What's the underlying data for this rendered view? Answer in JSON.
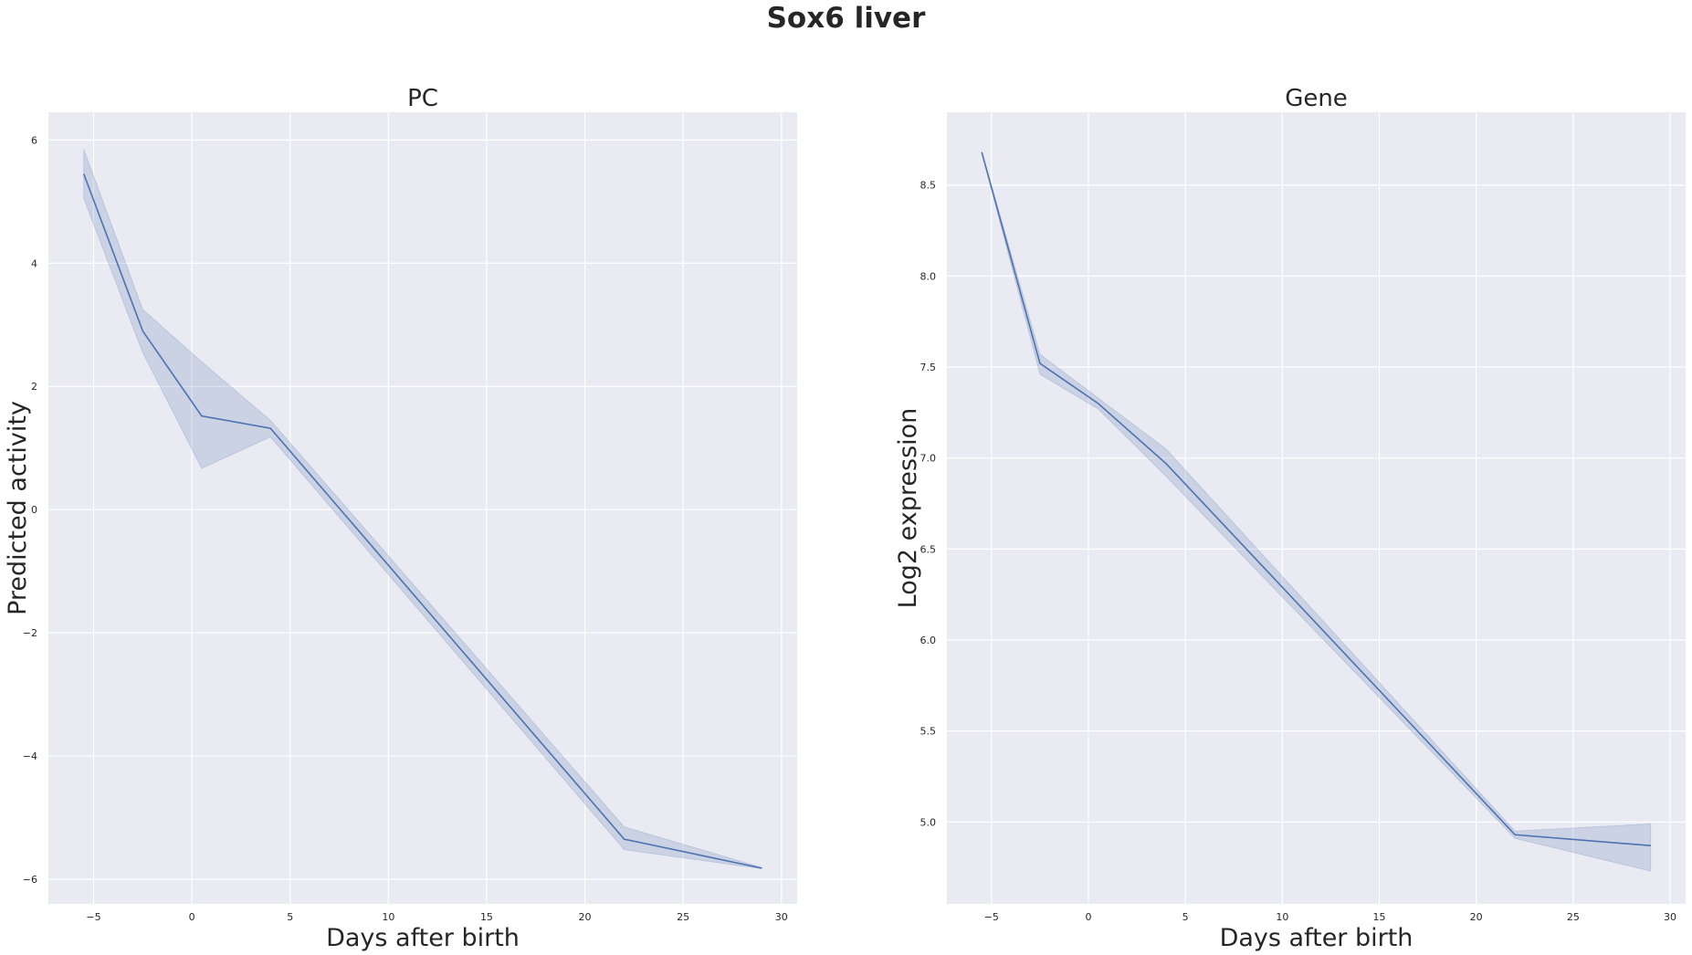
{
  "figure": {
    "title": "Sox6 liver"
  },
  "chart_data": [
    {
      "type": "line",
      "title": "PC",
      "xlabel": "Days after birth",
      "ylabel": "Predicted activity",
      "xlim": [
        -7.3,
        30.8
      ],
      "ylim": [
        -6.4,
        6.45
      ],
      "xticks": [
        -5,
        0,
        5,
        10,
        15,
        20,
        25,
        30
      ],
      "yticks": [
        -6,
        -4,
        -2,
        0,
        2,
        4,
        6
      ],
      "xtick_labels": [
        "−5",
        "0",
        "5",
        "10",
        "15",
        "20",
        "25",
        "30"
      ],
      "ytick_labels": [
        "−6",
        "−4",
        "−2",
        "0",
        "2",
        "4",
        "6"
      ],
      "grid": true,
      "color": "#4c72b0",
      "band_color": "#4c72b0",
      "background": "#eaeaf2",
      "series": [
        {
          "x": [
            -5.5,
            -2.5,
            0.5,
            4,
            22,
            29
          ],
          "y": [
            5.45,
            2.9,
            1.52,
            1.32,
            -5.35,
            -5.82
          ],
          "ci_lower": [
            5.05,
            2.55,
            0.67,
            1.18,
            -5.52,
            -5.83
          ],
          "ci_upper": [
            5.85,
            3.25,
            2.4,
            1.45,
            -5.15,
            -5.81
          ]
        }
      ]
    },
    {
      "type": "line",
      "title": "Gene",
      "xlabel": "Days after birth",
      "ylabel": "Log2 expression",
      "xlim": [
        -7.3,
        30.8
      ],
      "ylim": [
        4.55,
        8.9
      ],
      "xticks": [
        -5,
        0,
        5,
        10,
        15,
        20,
        25,
        30
      ],
      "yticks": [
        5.0,
        5.5,
        6.0,
        6.5,
        7.0,
        7.5,
        8.0,
        8.5
      ],
      "xtick_labels": [
        "−5",
        "0",
        "5",
        "10",
        "15",
        "20",
        "25",
        "30"
      ],
      "ytick_labels": [
        "5.0",
        "5.5",
        "6.0",
        "6.5",
        "7.0",
        "7.5",
        "8.0",
        "8.5"
      ],
      "grid": true,
      "color": "#4c72b0",
      "band_color": "#4c72b0",
      "background": "#eaeaf2",
      "series": [
        {
          "x": [
            -5.5,
            -2.5,
            0.5,
            4,
            22,
            29
          ],
          "y": [
            8.68,
            7.52,
            7.3,
            6.97,
            4.93,
            4.87
          ],
          "ci_lower": [
            8.675,
            7.46,
            7.27,
            6.9,
            4.91,
            4.73
          ],
          "ci_upper": [
            8.685,
            7.57,
            7.33,
            7.05,
            4.95,
            4.99
          ]
        }
      ]
    }
  ]
}
